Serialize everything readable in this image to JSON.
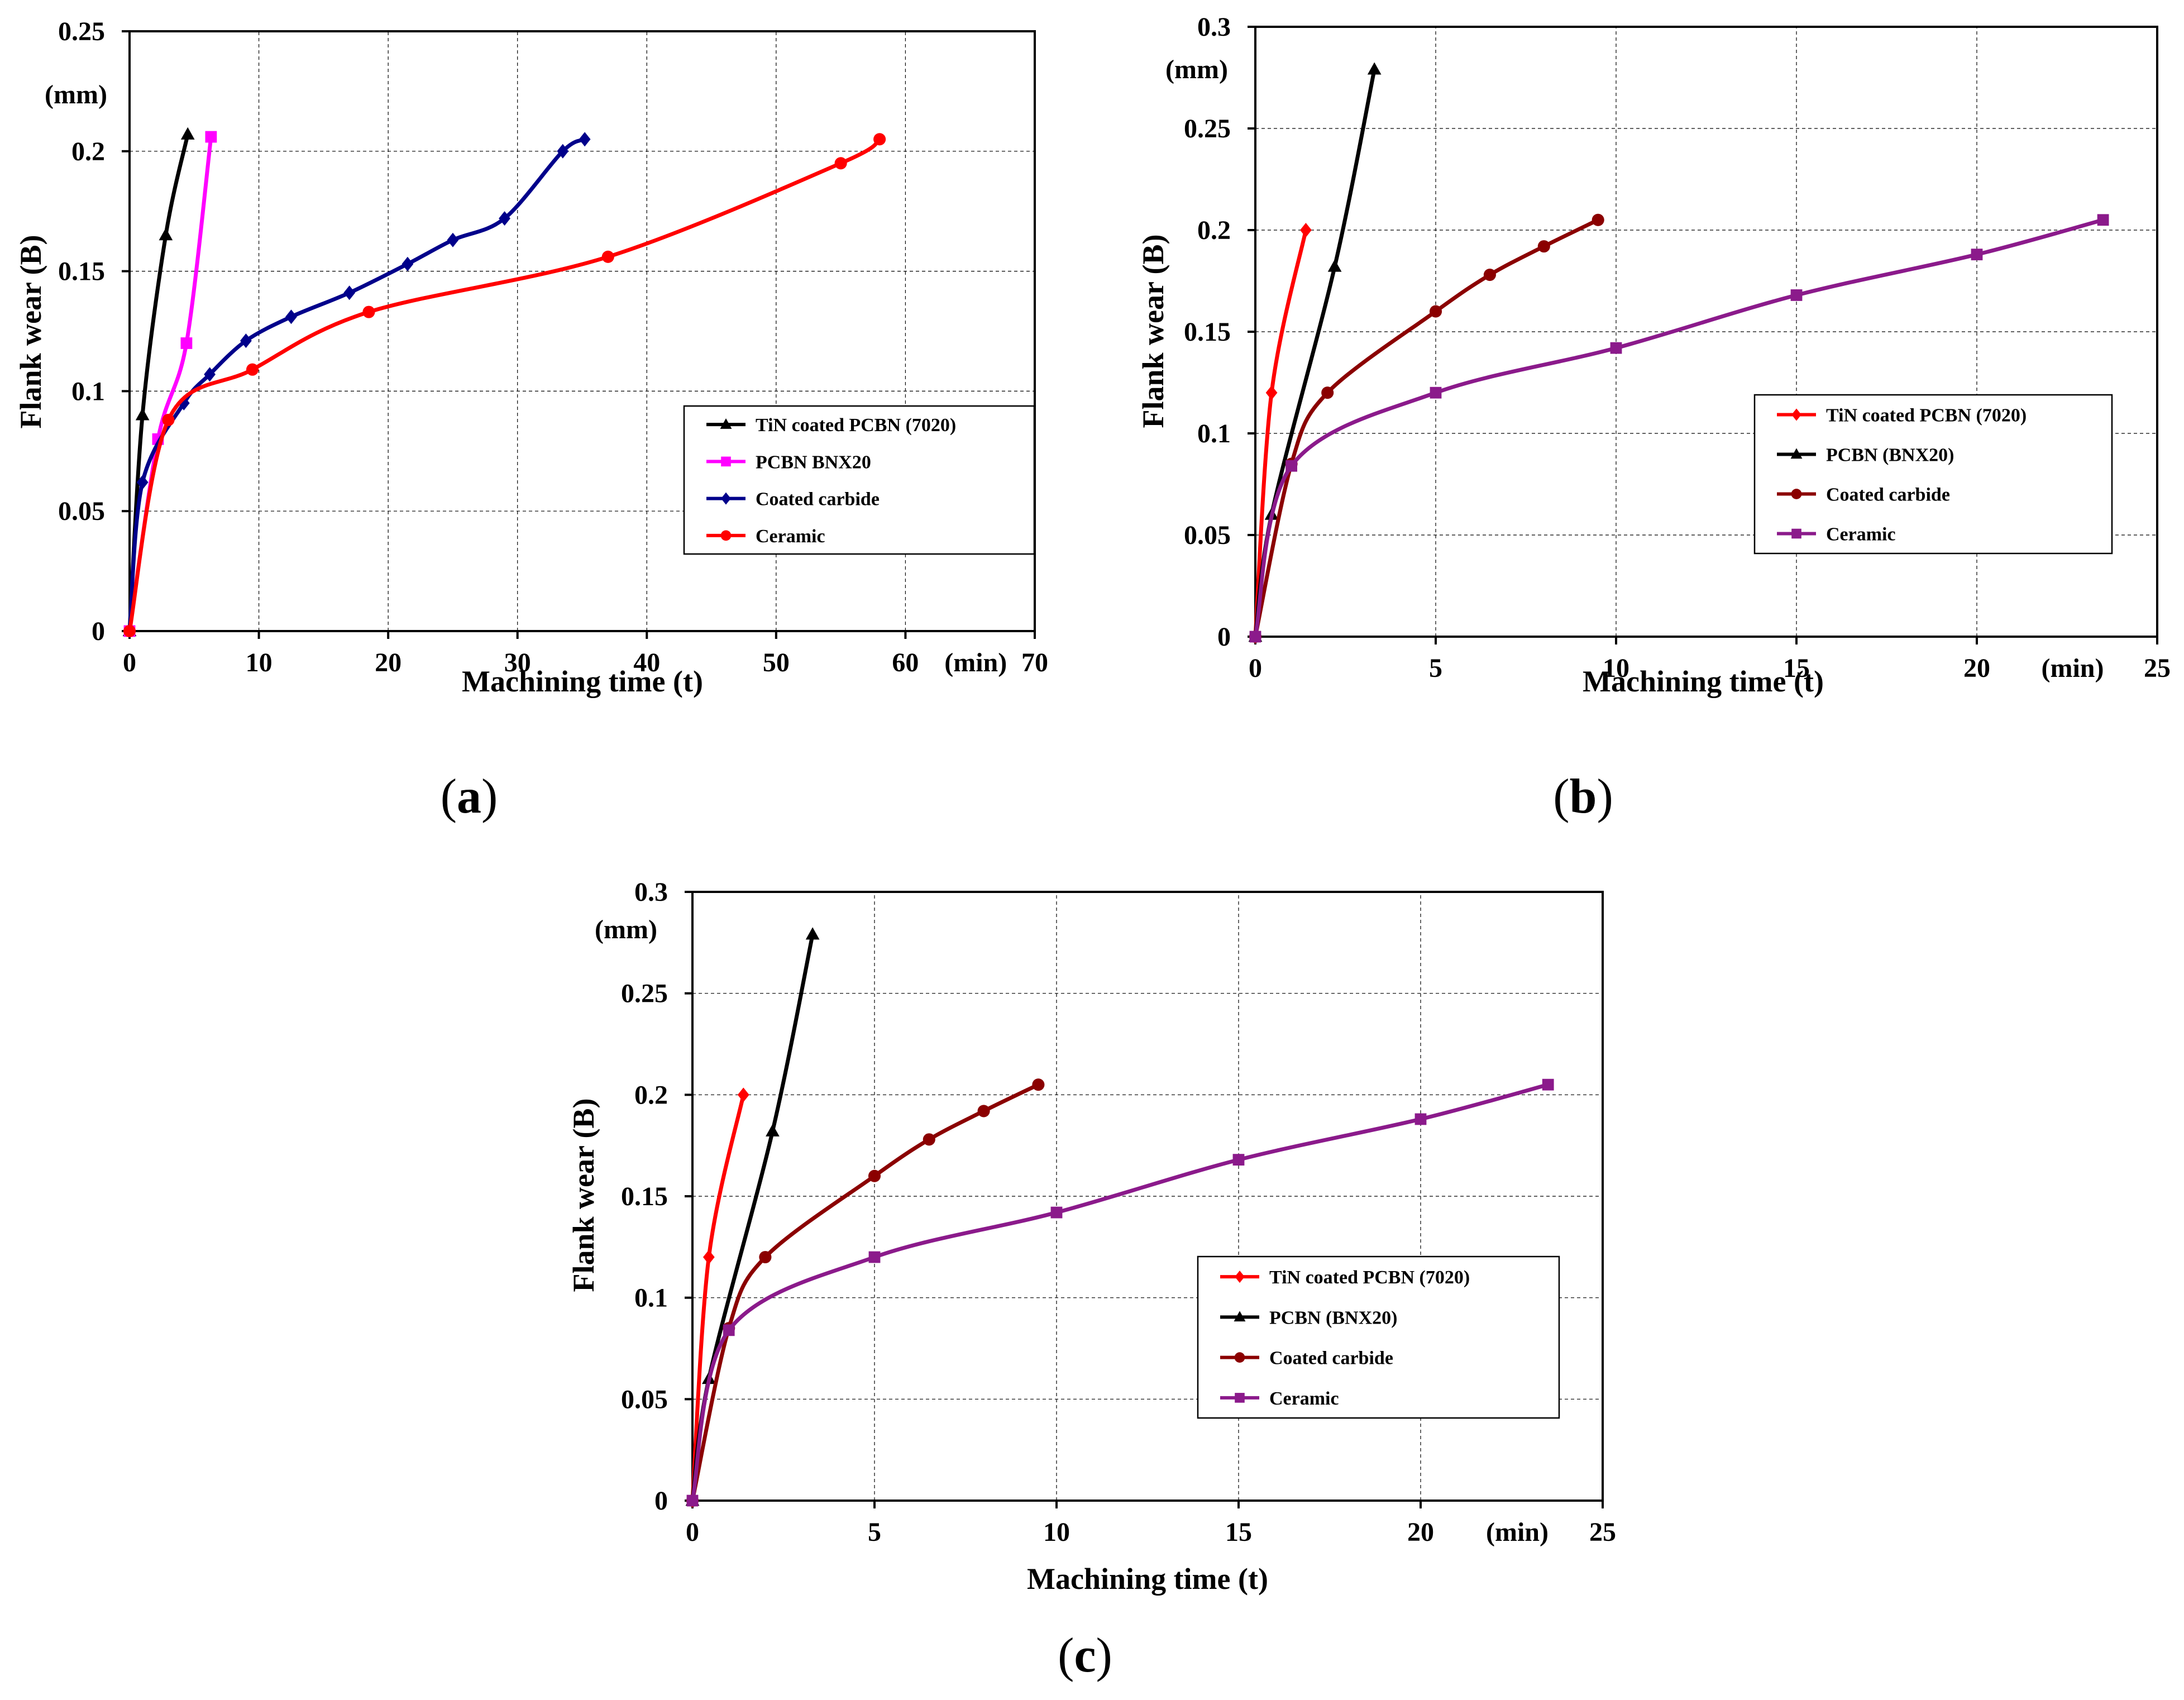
{
  "chart_data": [
    {
      "id": "a",
      "type": "line",
      "panel_label": "a",
      "ylabel": "Flank wear (B)",
      "yunit": "(mm)",
      "xlabel": "Machining time (t)",
      "xunit": "(min)",
      "xlim": [
        0,
        70
      ],
      "ylim": [
        0,
        0.25
      ],
      "xticks": [
        "0",
        "10",
        "20",
        "30",
        "40",
        "50",
        "60",
        "70"
      ],
      "xtick_values": [
        0,
        10,
        20,
        30,
        40,
        50,
        60,
        70
      ],
      "yticks": [
        "0",
        "0.05",
        "0.1",
        "0.15",
        "0.2",
        "0.25"
      ],
      "ytick_values": [
        0,
        0.05,
        0.1,
        0.15,
        0.2,
        0.25
      ],
      "grid": true,
      "legend_position": "lower-right",
      "series": [
        {
          "name": "TiN coated PCBN (7020)",
          "color": "#000000",
          "marker": "triangle",
          "points": [
            [
              0,
              0
            ],
            [
              1,
              0.09
            ],
            [
              2.8,
              0.165
            ],
            [
              4.5,
              0.207
            ]
          ]
        },
        {
          "name": "PCBN BNX20",
          "color": "#FF00FF",
          "marker": "square",
          "points": [
            [
              0,
              0
            ],
            [
              2.2,
              0.08
            ],
            [
              4.4,
              0.12
            ],
            [
              6.3,
              0.206
            ]
          ]
        },
        {
          "name": "Coated carbide",
          "color": "#00008B",
          "marker": "diamond",
          "points": [
            [
              0,
              0
            ],
            [
              1,
              0.062
            ],
            [
              4.2,
              0.095
            ],
            [
              6.2,
              0.107
            ],
            [
              9,
              0.121
            ],
            [
              12.5,
              0.131
            ],
            [
              17,
              0.141
            ],
            [
              21.5,
              0.153
            ],
            [
              25,
              0.163
            ],
            [
              29,
              0.172
            ],
            [
              33.5,
              0.2
            ],
            [
              35.2,
              0.205
            ]
          ]
        },
        {
          "name": "Ceramic",
          "color": "#FF0000",
          "marker": "circle",
          "points": [
            [
              0,
              0
            ],
            [
              3,
              0.088
            ],
            [
              9.5,
              0.109
            ],
            [
              18.5,
              0.133
            ],
            [
              37,
              0.156
            ],
            [
              55,
              0.195
            ],
            [
              58,
              0.205
            ]
          ]
        }
      ]
    },
    {
      "id": "b",
      "type": "line",
      "panel_label": "b",
      "ylabel": "Flank wear (B)",
      "yunit": "(mm)",
      "xlabel": "Machining time (t)",
      "xunit": "(min)",
      "xlim": [
        0,
        25
      ],
      "ylim": [
        0,
        0.3
      ],
      "xticks": [
        "0",
        "5",
        "10",
        "15",
        "20",
        "25"
      ],
      "xtick_values": [
        0,
        5,
        10,
        15,
        20,
        25
      ],
      "yticks": [
        "0",
        "0.05",
        "0.1",
        "0.15",
        "0.2",
        "0.25",
        "0.3"
      ],
      "ytick_values": [
        0,
        0.05,
        0.1,
        0.15,
        0.2,
        0.25,
        0.3
      ],
      "grid": true,
      "legend_position": "lower-right",
      "series": [
        {
          "name": "TiN coated PCBN (7020)",
          "color": "#FF0000",
          "marker": "diamond",
          "points": [
            [
              0,
              0
            ],
            [
              0.45,
              0.12
            ],
            [
              1.4,
              0.2
            ]
          ]
        },
        {
          "name": "PCBN (BNX20)",
          "color": "#000000",
          "marker": "triangle",
          "points": [
            [
              0,
              0
            ],
            [
              0.45,
              0.06
            ],
            [
              2.2,
              0.182
            ],
            [
              3.3,
              0.279
            ]
          ]
        },
        {
          "name": "Coated carbide",
          "color": "#8B0000",
          "marker": "circle",
          "points": [
            [
              0,
              0
            ],
            [
              1,
              0.085
            ],
            [
              2,
              0.12
            ],
            [
              5,
              0.16
            ],
            [
              6.5,
              0.178
            ],
            [
              8,
              0.192
            ],
            [
              9.5,
              0.205
            ]
          ]
        },
        {
          "name": "Ceramic",
          "color": "#8B1A8B",
          "marker": "square",
          "points": [
            [
              0,
              0
            ],
            [
              1,
              0.084
            ],
            [
              5,
              0.12
            ],
            [
              10,
              0.142
            ],
            [
              15,
              0.168
            ],
            [
              20,
              0.188
            ],
            [
              23.5,
              0.205
            ]
          ]
        }
      ]
    },
    {
      "id": "c",
      "type": "line",
      "panel_label": "c",
      "ylabel": "Flank wear (B)",
      "yunit": "(mm)",
      "xlabel": "Machining time (t)",
      "xunit": "(min)",
      "xlim": [
        0,
        25
      ],
      "ylim": [
        0,
        0.3
      ],
      "xticks": [
        "0",
        "5",
        "10",
        "15",
        "20",
        "25"
      ],
      "xtick_values": [
        0,
        5,
        10,
        15,
        20,
        25
      ],
      "yticks": [
        "0",
        "0.05",
        "0.1",
        "0.15",
        "0.2",
        "0.25",
        "0.3"
      ],
      "ytick_values": [
        0,
        0.05,
        0.1,
        0.15,
        0.2,
        0.25,
        0.3
      ],
      "grid": true,
      "legend_position": "lower-right",
      "series": [
        {
          "name": "TiN coated PCBN (7020)",
          "color": "#FF0000",
          "marker": "diamond",
          "points": [
            [
              0,
              0
            ],
            [
              0.45,
              0.12
            ],
            [
              1.4,
              0.2
            ]
          ]
        },
        {
          "name": "PCBN (BNX20)",
          "color": "#000000",
          "marker": "triangle",
          "points": [
            [
              0,
              0
            ],
            [
              0.45,
              0.06
            ],
            [
              2.2,
              0.182
            ],
            [
              3.3,
              0.279
            ]
          ]
        },
        {
          "name": "Coated carbide",
          "color": "#8B0000",
          "marker": "circle",
          "points": [
            [
              0,
              0
            ],
            [
              1,
              0.085
            ],
            [
              2,
              0.12
            ],
            [
              5,
              0.16
            ],
            [
              6.5,
              0.178
            ],
            [
              8,
              0.192
            ],
            [
              9.5,
              0.205
            ]
          ]
        },
        {
          "name": "Ceramic",
          "color": "#8B1A8B",
          "marker": "square",
          "points": [
            [
              0,
              0
            ],
            [
              1,
              0.084
            ],
            [
              5,
              0.12
            ],
            [
              10,
              0.142
            ],
            [
              15,
              0.168
            ],
            [
              20,
              0.188
            ],
            [
              23.5,
              0.205
            ]
          ]
        }
      ]
    }
  ]
}
